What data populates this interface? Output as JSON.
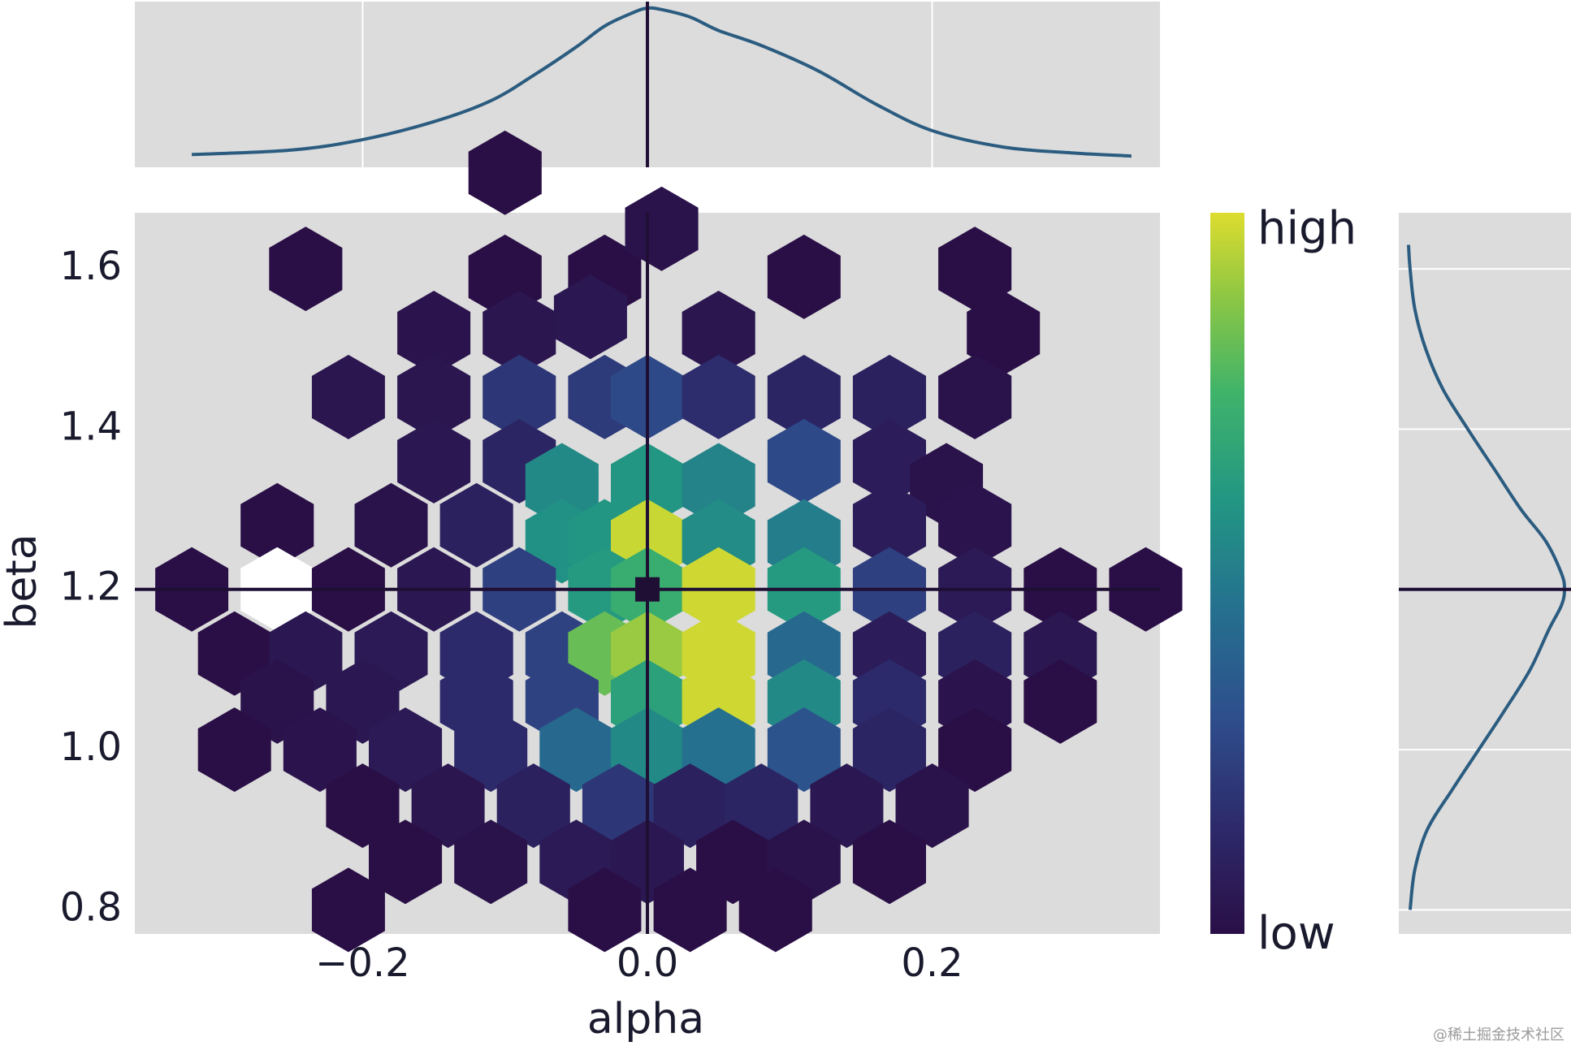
{
  "chart_data": {
    "type": "hexbin",
    "title": "",
    "xlabel": "alpha",
    "ylabel": "beta",
    "xlim": [
      -0.36,
      0.36
    ],
    "ylim": [
      0.77,
      1.67
    ],
    "xticks": [
      -0.2,
      0.0,
      0.2
    ],
    "xtick_labels": [
      "−0.2",
      "0.0",
      "0.2"
    ],
    "yticks": [
      0.8,
      1.0,
      1.2,
      1.4,
      1.6
    ],
    "ytick_labels": [
      "0.8",
      "1.0",
      "1.2",
      "1.4",
      "1.6"
    ],
    "reference_point": {
      "alpha": 0.0,
      "beta": 1.2
    },
    "colorbar": {
      "low_label": "low",
      "high_label": "high",
      "colormap": "viridis"
    },
    "hex_cells": [
      {
        "alpha": -0.1,
        "beta": 1.72,
        "density": 0.0
      },
      {
        "alpha": -0.1,
        "beta": 1.59,
        "density": 0.0
      },
      {
        "alpha": -0.03,
        "beta": 1.59,
        "density": 0.0
      },
      {
        "alpha": -0.04,
        "beta": 1.54,
        "density": 0.05
      },
      {
        "alpha": 0.01,
        "beta": 1.65,
        "density": 0.02
      },
      {
        "alpha": -0.24,
        "beta": 1.6,
        "density": 0.0
      },
      {
        "alpha": 0.11,
        "beta": 1.59,
        "density": 0.0
      },
      {
        "alpha": 0.23,
        "beta": 1.6,
        "density": 0.0
      },
      {
        "alpha": 0.25,
        "beta": 1.52,
        "density": 0.0
      },
      {
        "alpha": 0.23,
        "beta": 1.44,
        "density": 0.02
      },
      {
        "alpha": 0.05,
        "beta": 1.52,
        "density": 0.04
      },
      {
        "alpha": -0.09,
        "beta": 1.52,
        "density": 0.04
      },
      {
        "alpha": -0.15,
        "beta": 1.52,
        "density": 0.03
      },
      {
        "alpha": -0.21,
        "beta": 1.44,
        "density": 0.04
      },
      {
        "alpha": -0.15,
        "beta": 1.44,
        "density": 0.04
      },
      {
        "alpha": -0.09,
        "beta": 1.44,
        "density": 0.2
      },
      {
        "alpha": -0.03,
        "beta": 1.44,
        "density": 0.22
      },
      {
        "alpha": 0.0,
        "beta": 1.44,
        "density": 0.28
      },
      {
        "alpha": 0.05,
        "beta": 1.44,
        "density": 0.16
      },
      {
        "alpha": 0.11,
        "beta": 1.44,
        "density": 0.12
      },
      {
        "alpha": 0.17,
        "beta": 1.44,
        "density": 0.1
      },
      {
        "alpha": -0.15,
        "beta": 1.36,
        "density": 0.05
      },
      {
        "alpha": -0.09,
        "beta": 1.36,
        "density": 0.12
      },
      {
        "alpha": -0.06,
        "beta": 1.33,
        "density": 0.55
      },
      {
        "alpha": 0.0,
        "beta": 1.33,
        "density": 0.6
      },
      {
        "alpha": 0.05,
        "beta": 1.33,
        "density": 0.52
      },
      {
        "alpha": 0.11,
        "beta": 1.36,
        "density": 0.28
      },
      {
        "alpha": 0.17,
        "beta": 1.36,
        "density": 0.08
      },
      {
        "alpha": 0.21,
        "beta": 1.33,
        "density": 0.02
      },
      {
        "alpha": -0.26,
        "beta": 1.28,
        "density": 0.0
      },
      {
        "alpha": -0.18,
        "beta": 1.28,
        "density": 0.02
      },
      {
        "alpha": -0.12,
        "beta": 1.28,
        "density": 0.1
      },
      {
        "alpha": -0.06,
        "beta": 1.26,
        "density": 0.58
      },
      {
        "alpha": -0.03,
        "beta": 1.26,
        "density": 0.6
      },
      {
        "alpha": 0.0,
        "beta": 1.26,
        "density": 0.97
      },
      {
        "alpha": 0.05,
        "beta": 1.26,
        "density": 0.56
      },
      {
        "alpha": 0.11,
        "beta": 1.26,
        "density": 0.5
      },
      {
        "alpha": 0.17,
        "beta": 1.28,
        "density": 0.08
      },
      {
        "alpha": 0.23,
        "beta": 1.28,
        "density": 0.03
      },
      {
        "alpha": -0.32,
        "beta": 1.2,
        "density": 0.0
      },
      {
        "alpha": -0.26,
        "beta": 1.2,
        "density": 1.0
      },
      {
        "alpha": -0.21,
        "beta": 1.2,
        "density": 0.0
      },
      {
        "alpha": -0.15,
        "beta": 1.2,
        "density": 0.05
      },
      {
        "alpha": -0.09,
        "beta": 1.2,
        "density": 0.24
      },
      {
        "alpha": -0.03,
        "beta": 1.2,
        "density": 0.62
      },
      {
        "alpha": 0.0,
        "beta": 1.2,
        "density": 0.72
      },
      {
        "alpha": 0.05,
        "beta": 1.2,
        "density": 0.98
      },
      {
        "alpha": 0.11,
        "beta": 1.2,
        "density": 0.62
      },
      {
        "alpha": 0.17,
        "beta": 1.2,
        "density": 0.24
      },
      {
        "alpha": 0.23,
        "beta": 1.2,
        "density": 0.06
      },
      {
        "alpha": 0.29,
        "beta": 1.2,
        "density": 0.0
      },
      {
        "alpha": 0.35,
        "beta": 1.2,
        "density": 0.0
      },
      {
        "alpha": -0.29,
        "beta": 1.12,
        "density": 0.0
      },
      {
        "alpha": -0.24,
        "beta": 1.12,
        "density": 0.05
      },
      {
        "alpha": -0.18,
        "beta": 1.12,
        "density": 0.06
      },
      {
        "alpha": -0.12,
        "beta": 1.12,
        "density": 0.15
      },
      {
        "alpha": -0.06,
        "beta": 1.12,
        "density": 0.25
      },
      {
        "alpha": -0.03,
        "beta": 1.12,
        "density": 0.82
      },
      {
        "alpha": 0.0,
        "beta": 1.12,
        "density": 0.9
      },
      {
        "alpha": 0.05,
        "beta": 1.12,
        "density": 0.98
      },
      {
        "alpha": 0.11,
        "beta": 1.12,
        "density": 0.42
      },
      {
        "alpha": 0.17,
        "beta": 1.12,
        "density": 0.08
      },
      {
        "alpha": 0.23,
        "beta": 1.12,
        "density": 0.1
      },
      {
        "alpha": 0.29,
        "beta": 1.12,
        "density": 0.05
      },
      {
        "alpha": -0.26,
        "beta": 1.06,
        "density": 0.02
      },
      {
        "alpha": -0.2,
        "beta": 1.06,
        "density": 0.05
      },
      {
        "alpha": -0.12,
        "beta": 1.06,
        "density": 0.15
      },
      {
        "alpha": -0.06,
        "beta": 1.06,
        "density": 0.25
      },
      {
        "alpha": 0.0,
        "beta": 1.06,
        "density": 0.65
      },
      {
        "alpha": 0.05,
        "beta": 1.06,
        "density": 0.98
      },
      {
        "alpha": 0.11,
        "beta": 1.06,
        "density": 0.55
      },
      {
        "alpha": 0.17,
        "beta": 1.06,
        "density": 0.15
      },
      {
        "alpha": 0.23,
        "beta": 1.06,
        "density": 0.03
      },
      {
        "alpha": 0.29,
        "beta": 1.06,
        "density": 0.0
      },
      {
        "alpha": -0.29,
        "beta": 1.0,
        "density": 0.0
      },
      {
        "alpha": -0.23,
        "beta": 1.0,
        "density": 0.03
      },
      {
        "alpha": -0.17,
        "beta": 1.0,
        "density": 0.06
      },
      {
        "alpha": -0.11,
        "beta": 1.0,
        "density": 0.15
      },
      {
        "alpha": -0.05,
        "beta": 1.0,
        "density": 0.42
      },
      {
        "alpha": 0.0,
        "beta": 1.0,
        "density": 0.55
      },
      {
        "alpha": 0.05,
        "beta": 1.0,
        "density": 0.45
      },
      {
        "alpha": 0.11,
        "beta": 1.0,
        "density": 0.32
      },
      {
        "alpha": 0.17,
        "beta": 1.0,
        "density": 0.12
      },
      {
        "alpha": 0.23,
        "beta": 1.0,
        "density": 0.0
      },
      {
        "alpha": -0.2,
        "beta": 0.93,
        "density": 0.0
      },
      {
        "alpha": -0.14,
        "beta": 0.93,
        "density": 0.04
      },
      {
        "alpha": -0.08,
        "beta": 0.93,
        "density": 0.1
      },
      {
        "alpha": -0.02,
        "beta": 0.93,
        "density": 0.2
      },
      {
        "alpha": 0.03,
        "beta": 0.93,
        "density": 0.1
      },
      {
        "alpha": 0.08,
        "beta": 0.93,
        "density": 0.12
      },
      {
        "alpha": 0.14,
        "beta": 0.93,
        "density": 0.05
      },
      {
        "alpha": 0.2,
        "beta": 0.93,
        "density": 0.02
      },
      {
        "alpha": -0.17,
        "beta": 0.86,
        "density": 0.0
      },
      {
        "alpha": -0.11,
        "beta": 0.86,
        "density": 0.02
      },
      {
        "alpha": -0.05,
        "beta": 0.86,
        "density": 0.06
      },
      {
        "alpha": 0.0,
        "beta": 0.86,
        "density": 0.05
      },
      {
        "alpha": 0.06,
        "beta": 0.86,
        "density": 0.0
      },
      {
        "alpha": 0.11,
        "beta": 0.86,
        "density": 0.02
      },
      {
        "alpha": 0.17,
        "beta": 0.86,
        "density": 0.0
      },
      {
        "alpha": -0.21,
        "beta": 0.8,
        "density": 0.0
      },
      {
        "alpha": -0.03,
        "beta": 0.8,
        "density": 0.0
      },
      {
        "alpha": 0.03,
        "beta": 0.8,
        "density": 0.0
      },
      {
        "alpha": 0.09,
        "beta": 0.8,
        "density": 0.0
      }
    ],
    "marginal_alpha": {
      "x": [
        -0.32,
        -0.25,
        -0.2,
        -0.15,
        -0.11,
        -0.08,
        -0.05,
        -0.03,
        -0.01,
        0.0,
        0.01,
        0.03,
        0.05,
        0.08,
        0.12,
        0.16,
        0.2,
        0.25,
        0.3,
        0.34
      ],
      "density": [
        0.02,
        0.05,
        0.12,
        0.24,
        0.38,
        0.55,
        0.74,
        0.88,
        0.97,
        1.0,
        0.99,
        0.94,
        0.85,
        0.75,
        0.58,
        0.36,
        0.18,
        0.07,
        0.03,
        0.01
      ]
    },
    "marginal_beta": {
      "y": [
        0.8,
        0.85,
        0.9,
        0.95,
        1.0,
        1.05,
        1.1,
        1.15,
        1.18,
        1.2,
        1.22,
        1.26,
        1.3,
        1.35,
        1.4,
        1.45,
        1.5,
        1.55,
        1.6,
        1.63
      ],
      "density": [
        0.01,
        0.04,
        0.12,
        0.28,
        0.45,
        0.62,
        0.78,
        0.9,
        0.98,
        1.0,
        0.98,
        0.88,
        0.72,
        0.55,
        0.38,
        0.22,
        0.11,
        0.04,
        0.01,
        0.0
      ]
    }
  },
  "watermark": "@稀土掘金技术社区"
}
